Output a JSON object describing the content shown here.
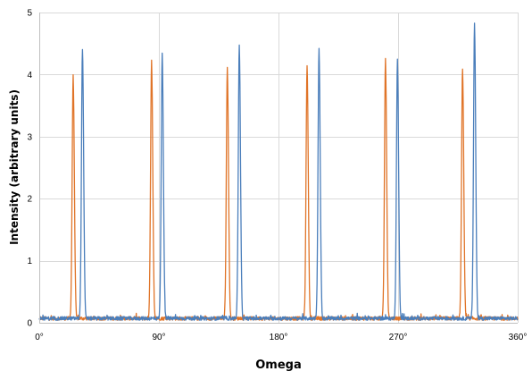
{
  "chart_data": {
    "type": "line",
    "xlabel": "Omega",
    "ylabel": "Intensity (arbitrary units)",
    "xlim": [
      0,
      360
    ],
    "ylim": [
      0,
      5
    ],
    "x_ticks": [
      {
        "value": 0,
        "label": "0°"
      },
      {
        "value": 90,
        "label": "90°"
      },
      {
        "value": 180,
        "label": "180°"
      },
      {
        "value": 270,
        "label": "270°"
      },
      {
        "value": 360,
        "label": "360°"
      }
    ],
    "y_ticks": [
      {
        "value": 0,
        "label": "0"
      },
      {
        "value": 1,
        "label": "1"
      },
      {
        "value": 2,
        "label": "2"
      },
      {
        "value": 3,
        "label": "3"
      },
      {
        "value": 4,
        "label": "4"
      },
      {
        "value": 5,
        "label": "5"
      }
    ],
    "grid": true,
    "legend": "none",
    "baseline": 0.07,
    "series": [
      {
        "color": "#E07428",
        "peaks": [
          {
            "x": 25.5,
            "y": 3.97
          },
          {
            "x": 84.5,
            "y": 4.22
          },
          {
            "x": 141.5,
            "y": 4.12
          },
          {
            "x": 201.5,
            "y": 4.15
          },
          {
            "x": 260.5,
            "y": 4.23
          },
          {
            "x": 318.5,
            "y": 4.11
          }
        ]
      },
      {
        "color": "#4A7EBB",
        "peaks": [
          {
            "x": 32.5,
            "y": 4.43
          },
          {
            "x": 92.5,
            "y": 4.33
          },
          {
            "x": 150.5,
            "y": 4.46
          },
          {
            "x": 210.5,
            "y": 4.4
          },
          {
            "x": 269.5,
            "y": 4.23
          },
          {
            "x": 327.5,
            "y": 4.83
          }
        ]
      }
    ]
  }
}
